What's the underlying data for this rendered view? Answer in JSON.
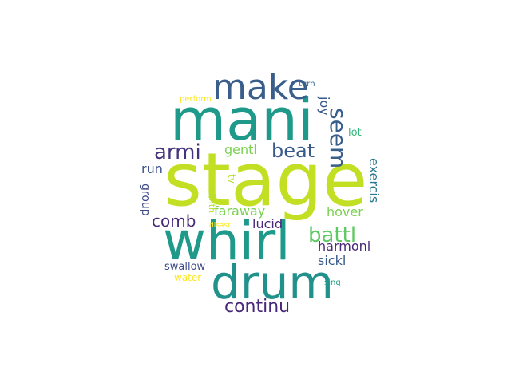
{
  "words": [
    {
      "id": "stage",
      "text": "stage",
      "color": "#c2df23"
    },
    {
      "id": "mani",
      "text": "mani",
      "color": "#1f9a8a"
    },
    {
      "id": "whirl",
      "text": "whirl",
      "color": "#1f9a8a"
    },
    {
      "id": "drum",
      "text": "drum",
      "color": "#21918c"
    },
    {
      "id": "make",
      "text": "make",
      "color": "#3a5e8c"
    },
    {
      "id": "seem",
      "text": "seem",
      "color": "#3a5e8c"
    },
    {
      "id": "armi",
      "text": "armi",
      "color": "#46327e"
    },
    {
      "id": "beat",
      "text": "beat",
      "color": "#38598c"
    },
    {
      "id": "battl",
      "text": "battl",
      "color": "#5ec962"
    },
    {
      "id": "continu",
      "text": "continu",
      "color": "#482878"
    },
    {
      "id": "comb",
      "text": "comb",
      "color": "#482878"
    },
    {
      "id": "faraway",
      "text": "faraway",
      "color": "#7ad151"
    },
    {
      "id": "lucid",
      "text": "lucid",
      "color": "#482878"
    },
    {
      "id": "harmoni",
      "text": "harmoni",
      "color": "#482878"
    },
    {
      "id": "sickl",
      "text": "sickl",
      "color": "#38598c"
    },
    {
      "id": "hover",
      "text": "hover",
      "color": "#7ad151"
    },
    {
      "id": "exercis",
      "text": "exercis",
      "color": "#2a788e"
    },
    {
      "id": "gentl",
      "text": "gentl",
      "color": "#7ad151"
    },
    {
      "id": "run",
      "text": "run",
      "color": "#3b528b"
    },
    {
      "id": "group",
      "text": "group",
      "color": "#3e4a89"
    },
    {
      "id": "joy",
      "text": "joy",
      "color": "#38598c"
    },
    {
      "id": "lot",
      "text": "lot",
      "color": "#35b779"
    },
    {
      "id": "turn",
      "text": "turn",
      "color": "#31688e"
    },
    {
      "id": "perform",
      "text": "perform",
      "color": "#fde725"
    },
    {
      "id": "tv",
      "text": "tv",
      "color": "#b5de2b"
    },
    {
      "id": "eighth",
      "text": "eighth",
      "color": "#b5de2b"
    },
    {
      "id": "disast",
      "text": "disast",
      "color": "#fde725"
    },
    {
      "id": "swallow",
      "text": "swallow",
      "color": "#3e4a89"
    },
    {
      "id": "water",
      "text": "water",
      "color": "#fde725"
    },
    {
      "id": "sing",
      "text": "sing",
      "color": "#20a386"
    }
  ]
}
